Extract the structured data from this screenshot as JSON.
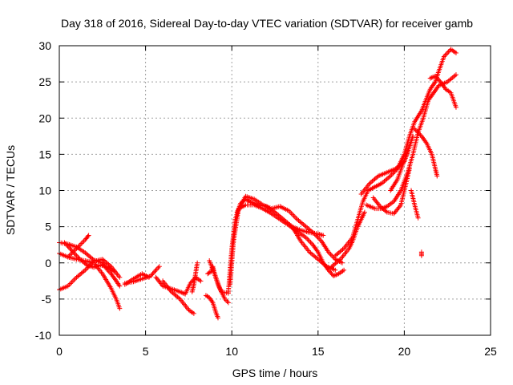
{
  "chart_data": {
    "type": "scatter",
    "title": "Day 318 of 2016, Sidereal Day-to-day VTEC variation (SDTVAR) for receiver gamb",
    "xlabel": "GPS time / hours",
    "ylabel": "SDTVAR / TECUs",
    "xlim": [
      0,
      25
    ],
    "ylim": [
      -10,
      30
    ],
    "xticks": [
      "0",
      "5",
      "10",
      "15",
      "20",
      "25"
    ],
    "yticks": [
      "-10",
      "-5",
      "0",
      "5",
      "10",
      "15",
      "20",
      "25",
      "30"
    ],
    "grid": true,
    "marker": "+",
    "color": "#ff0000",
    "series": [
      {
        "points": [
          [
            0.0,
            2.8
          ],
          [
            0.5,
            2.6
          ],
          [
            1.0,
            2.2
          ],
          [
            1.5,
            1.4
          ],
          [
            2.0,
            0.4
          ],
          [
            2.5,
            0.0
          ],
          [
            2.8,
            -1.0
          ],
          [
            3.0,
            -1.5
          ],
          [
            3.3,
            -2.5
          ],
          [
            3.5,
            -3.2
          ]
        ]
      },
      {
        "points": [
          [
            0.0,
            1.3
          ],
          [
            0.5,
            0.8
          ],
          [
            1.0,
            0.5
          ],
          [
            1.5,
            0.3
          ],
          [
            2.0,
            0.0
          ],
          [
            2.5,
            -1.5
          ],
          [
            3.0,
            -3.5
          ],
          [
            3.3,
            -5.0
          ],
          [
            3.5,
            -6.3
          ]
        ]
      },
      {
        "points": [
          [
            0.0,
            -3.7
          ],
          [
            0.5,
            -3.2
          ],
          [
            1.0,
            -2.0
          ],
          [
            1.5,
            -1.0
          ],
          [
            2.0,
            0.2
          ],
          [
            2.5,
            0.5
          ],
          [
            3.0,
            -0.5
          ],
          [
            3.5,
            -2.0
          ]
        ]
      },
      {
        "points": [
          [
            0.3,
            2.8
          ],
          [
            0.8,
            1.5
          ],
          [
            1.2,
            0.5
          ],
          [
            1.6,
            -0.3
          ],
          [
            2.0,
            -0.6
          ],
          [
            2.4,
            -0.3
          ],
          [
            2.8,
            -0.6
          ],
          [
            3.2,
            -1.2
          ]
        ]
      },
      {
        "points": [
          [
            0.5,
            0.8
          ],
          [
            1.0,
            2.0
          ],
          [
            1.5,
            3.2
          ],
          [
            1.7,
            3.8
          ]
        ]
      },
      {
        "points": [
          [
            3.8,
            -2.8
          ],
          [
            4.3,
            -2.6
          ],
          [
            4.8,
            -2.2
          ],
          [
            5.3,
            -1.8
          ],
          [
            5.6,
            -1.0
          ],
          [
            5.8,
            -0.5
          ]
        ]
      },
      {
        "points": [
          [
            3.8,
            -3.0
          ],
          [
            4.3,
            -2.2
          ],
          [
            4.8,
            -1.5
          ],
          [
            5.2,
            -2.0
          ]
        ]
      },
      {
        "points": [
          [
            5.6,
            -2.0
          ],
          [
            6.0,
            -3.2
          ],
          [
            6.5,
            -3.6
          ],
          [
            7.0,
            -4.0
          ],
          [
            7.3,
            -4.3
          ],
          [
            7.6,
            -2.8
          ],
          [
            7.9,
            -2.0
          ],
          [
            8.2,
            -2.5
          ]
        ]
      },
      {
        "points": [
          [
            6.0,
            -2.5
          ],
          [
            6.5,
            -4.0
          ],
          [
            7.0,
            -5.0
          ],
          [
            7.5,
            -6.5
          ],
          [
            7.8,
            -7.0
          ]
        ]
      },
      {
        "points": [
          [
            7.7,
            -4.0
          ],
          [
            7.8,
            -3.0
          ],
          [
            7.9,
            -1.5
          ],
          [
            8.0,
            0.0
          ]
        ]
      },
      {
        "points": [
          [
            8.5,
            -4.5
          ],
          [
            8.7,
            -4.8
          ],
          [
            8.9,
            -5.5
          ],
          [
            9.1,
            -7.0
          ],
          [
            9.2,
            -7.6
          ]
        ]
      },
      {
        "points": [
          [
            8.6,
            -1.5
          ],
          [
            8.8,
            -1.2
          ],
          [
            8.9,
            -0.5
          ],
          [
            9.0,
            -1.5
          ],
          [
            9.2,
            -3.0
          ],
          [
            9.4,
            -4.0
          ],
          [
            9.8,
            -4.2
          ]
        ]
      },
      {
        "points": [
          [
            8.7,
            0.3
          ],
          [
            9.0,
            -1.5
          ],
          [
            9.3,
            -3.5
          ],
          [
            9.6,
            -5.0
          ],
          [
            9.8,
            -5.5
          ]
        ]
      },
      {
        "points": [
          [
            9.8,
            -4.0
          ],
          [
            10.0,
            2.0
          ],
          [
            10.2,
            6.0
          ],
          [
            10.5,
            8.2
          ],
          [
            10.8,
            8.8
          ],
          [
            11.0,
            8.5
          ],
          [
            11.5,
            8.0
          ],
          [
            12.0,
            7.8
          ],
          [
            12.5,
            7.0
          ],
          [
            13.0,
            6.0
          ],
          [
            13.5,
            5.0
          ],
          [
            14.0,
            4.5
          ],
          [
            14.5,
            4.2
          ],
          [
            15.0,
            4.0
          ],
          [
            15.3,
            3.8
          ]
        ]
      },
      {
        "points": [
          [
            9.9,
            -3.0
          ],
          [
            10.1,
            3.0
          ],
          [
            10.4,
            7.5
          ],
          [
            10.8,
            8.0
          ],
          [
            11.3,
            8.0
          ],
          [
            11.8,
            7.5
          ],
          [
            12.3,
            6.8
          ],
          [
            12.8,
            6.0
          ],
          [
            13.3,
            5.2
          ],
          [
            13.8,
            4.3
          ],
          [
            14.3,
            3.5
          ],
          [
            14.7,
            2.5
          ],
          [
            15.0,
            1.5
          ],
          [
            15.3,
            0.0
          ],
          [
            15.6,
            -1.0
          ],
          [
            15.9,
            -1.8
          ],
          [
            16.2,
            -1.5
          ],
          [
            16.5,
            -1.0
          ]
        ]
      },
      {
        "points": [
          [
            10.3,
            7.0
          ],
          [
            10.8,
            9.2
          ],
          [
            11.3,
            8.8
          ],
          [
            11.8,
            8.0
          ],
          [
            12.3,
            7.5
          ],
          [
            12.8,
            7.8
          ],
          [
            13.3,
            7.2
          ],
          [
            13.8,
            6.0
          ],
          [
            14.3,
            5.0
          ],
          [
            14.8,
            4.0
          ],
          [
            15.2,
            3.0
          ],
          [
            15.6,
            1.5
          ],
          [
            16.0,
            0.5
          ],
          [
            16.4,
            0.0
          ]
        ]
      },
      {
        "points": [
          [
            13.5,
            5.0
          ],
          [
            14.0,
            3.0
          ],
          [
            14.5,
            1.5
          ],
          [
            15.0,
            0.5
          ],
          [
            15.5,
            -0.5
          ],
          [
            16.0,
            -1.0
          ]
        ]
      },
      {
        "points": [
          [
            15.8,
            -0.5
          ],
          [
            16.3,
            0.5
          ],
          [
            16.8,
            2.0
          ],
          [
            17.0,
            3.0
          ],
          [
            17.3,
            5.0
          ],
          [
            17.5,
            6.0
          ],
          [
            17.7,
            7.0
          ]
        ]
      },
      {
        "points": [
          [
            16.0,
            1.0
          ],
          [
            16.5,
            2.0
          ],
          [
            17.0,
            3.5
          ],
          [
            17.3,
            6.0
          ],
          [
            17.6,
            8.5
          ],
          [
            17.9,
            10.0
          ],
          [
            18.3,
            10.5
          ],
          [
            18.7,
            11.0
          ],
          [
            19.2,
            12.0
          ],
          [
            19.6,
            13.0
          ],
          [
            20.0,
            15.0
          ],
          [
            20.3,
            17.5
          ],
          [
            20.6,
            19.5
          ],
          [
            21.0,
            21.0
          ],
          [
            21.5,
            24.0
          ],
          [
            21.8,
            25.0
          ],
          [
            22.0,
            26.5
          ],
          [
            22.3,
            28.5
          ],
          [
            22.7,
            29.5
          ],
          [
            23.0,
            29.0
          ]
        ]
      },
      {
        "points": [
          [
            17.5,
            9.5
          ],
          [
            18.0,
            11.0
          ],
          [
            18.5,
            12.0
          ],
          [
            19.0,
            12.5
          ],
          [
            19.5,
            13.0
          ],
          [
            20.0,
            14.0
          ],
          [
            20.3,
            16.0
          ],
          [
            20.5,
            17.5
          ]
        ]
      },
      {
        "points": [
          [
            17.8,
            8.0
          ],
          [
            18.3,
            7.5
          ],
          [
            18.7,
            7.5
          ],
          [
            19.0,
            7.8
          ],
          [
            19.4,
            8.5
          ],
          [
            19.8,
            10.0
          ],
          [
            20.2,
            12.5
          ],
          [
            20.5,
            15.0
          ],
          [
            20.8,
            18.0
          ],
          [
            21.1,
            20.0
          ],
          [
            21.4,
            22.5
          ],
          [
            21.7,
            23.5
          ],
          [
            22.0,
            24.5
          ],
          [
            22.5,
            25.0
          ],
          [
            23.0,
            26.0
          ]
        ]
      },
      {
        "points": [
          [
            18.2,
            9.0
          ],
          [
            18.6,
            7.8
          ],
          [
            19.0,
            7.0
          ],
          [
            19.4,
            6.8
          ],
          [
            19.8,
            8.0
          ],
          [
            20.1,
            11.0
          ],
          [
            20.3,
            13.0
          ]
        ]
      },
      {
        "points": [
          [
            19.2,
            10.0
          ],
          [
            19.6,
            11.5
          ],
          [
            19.9,
            13.5
          ],
          [
            20.2,
            15.5
          ]
        ]
      },
      {
        "points": [
          [
            20.4,
            10.0
          ],
          [
            20.6,
            8.0
          ],
          [
            20.8,
            6.2
          ]
        ]
      },
      {
        "points": [
          [
            20.6,
            18.5
          ],
          [
            21.0,
            17.5
          ],
          [
            21.3,
            16.5
          ],
          [
            21.6,
            15.0
          ],
          [
            21.8,
            13.0
          ],
          [
            21.9,
            12.0
          ]
        ]
      },
      {
        "points": [
          [
            21.0,
            1.5
          ],
          [
            21.0,
            1.0
          ]
        ]
      },
      {
        "points": [
          [
            21.5,
            25.5
          ],
          [
            21.8,
            25.8
          ],
          [
            22.1,
            25.0
          ],
          [
            22.4,
            24.0
          ],
          [
            22.7,
            23.5
          ],
          [
            23.0,
            21.5
          ]
        ]
      }
    ]
  }
}
